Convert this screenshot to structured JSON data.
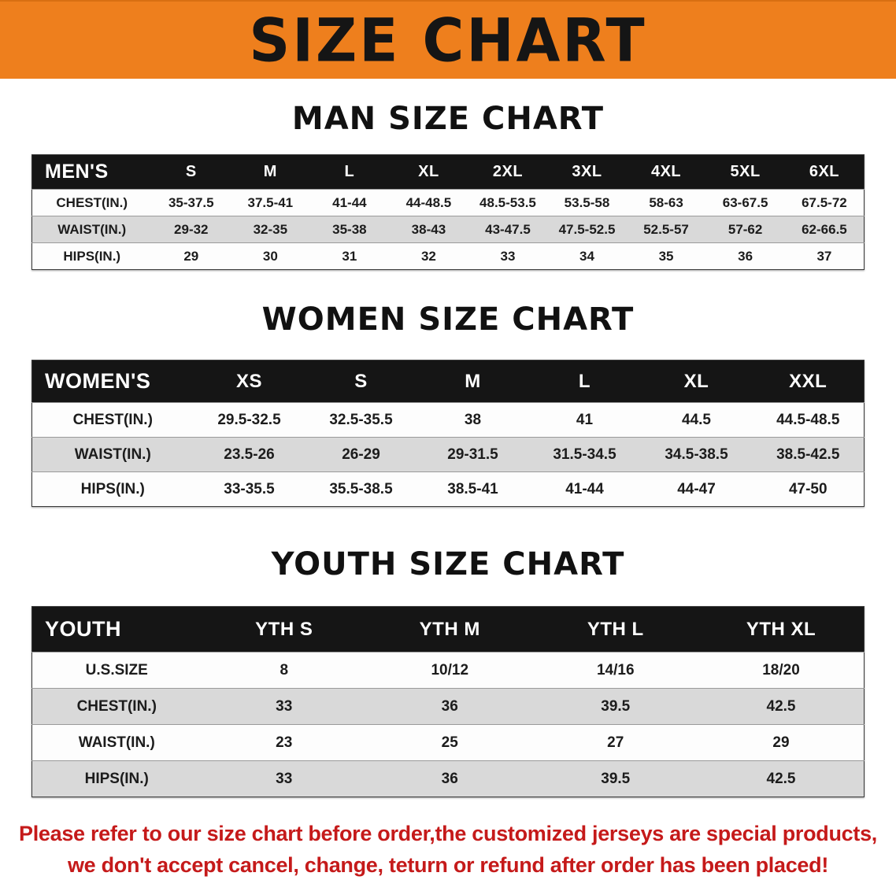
{
  "banner": {
    "title": "SIZE CHART"
  },
  "colors": {
    "accent": "#ee7f1d",
    "header-bg": "#151515",
    "row-alt": "#d9d9d9",
    "red": "#c51a1a"
  },
  "sections": [
    {
      "heading": "MAN SIZE CHART",
      "table": {
        "header": [
          "MEN'S",
          "S",
          "M",
          "L",
          "XL",
          "2XL",
          "3XL",
          "4XL",
          "5XL",
          "6XL"
        ],
        "rows": [
          [
            "CHEST(IN.)",
            "35-37.5",
            "37.5-41",
            "41-44",
            "44-48.5",
            "48.5-53.5",
            "53.5-58",
            "58-63",
            "63-67.5",
            "67.5-72"
          ],
          [
            "WAIST(IN.)",
            "29-32",
            "32-35",
            "35-38",
            "38-43",
            "43-47.5",
            "47.5-52.5",
            "52.5-57",
            "57-62",
            "62-66.5"
          ],
          [
            "HIPS(IN.)",
            "29",
            "30",
            "31",
            "32",
            "33",
            "34",
            "35",
            "36",
            "37"
          ]
        ]
      }
    },
    {
      "heading": "WOMEN SIZE CHART",
      "table": {
        "header": [
          "WOMEN'S",
          "XS",
          "S",
          "M",
          "L",
          "XL",
          "XXL"
        ],
        "rows": [
          [
            "CHEST(IN.)",
            "29.5-32.5",
            "32.5-35.5",
            "38",
            "41",
            "44.5",
            "44.5-48.5"
          ],
          [
            "WAIST(IN.)",
            "23.5-26",
            "26-29",
            "29-31.5",
            "31.5-34.5",
            "34.5-38.5",
            "38.5-42.5"
          ],
          [
            "HIPS(IN.)",
            "33-35.5",
            "35.5-38.5",
            "38.5-41",
            "41-44",
            "44-47",
            "47-50"
          ]
        ]
      }
    },
    {
      "heading": "YOUTH SIZE CHART",
      "table": {
        "header": [
          "YOUTH",
          "YTH S",
          "YTH M",
          "YTH L",
          "YTH XL"
        ],
        "rows": [
          [
            "U.S.SIZE",
            "8",
            "10/12",
            "14/16",
            "18/20"
          ],
          [
            "CHEST(IN.)",
            "33",
            "36",
            "39.5",
            "42.5"
          ],
          [
            "WAIST(IN.)",
            "23",
            "25",
            "27",
            "29"
          ],
          [
            "HIPS(IN.)",
            "33",
            "36",
            "39.5",
            "42.5"
          ]
        ]
      }
    }
  ],
  "disclaimer": {
    "line1": "Please refer to our size chart before order,the customized jerseys are special products,",
    "line2": "we don't accept cancel, change, teturn or refund after order has been placed!"
  }
}
